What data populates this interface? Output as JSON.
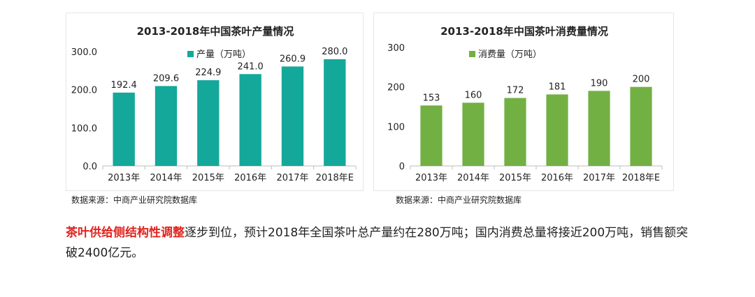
{
  "charts": {
    "production": {
      "title": "2013-2018年中国茶叶产量情况",
      "legend": "产量（万吨）",
      "source": "数据来源：中商产业研究院数据库",
      "color": "#14a89b"
    },
    "consumption": {
      "title": "2013-2018年中国茶叶消费量情况",
      "legend": "消费量（万吨）",
      "source": "数据来源：中商产业研究院数据库",
      "color": "#72b043"
    }
  },
  "chart_data": [
    {
      "type": "bar",
      "title": "2013-2018年中国茶叶产量情况",
      "categories": [
        "2013年",
        "2014年",
        "2015年",
        "2016年",
        "2017年",
        "2018年E"
      ],
      "series": [
        {
          "name": "产量（万吨）",
          "values": [
            192.4,
            209.6,
            224.9,
            241.0,
            260.9,
            280.0
          ]
        }
      ],
      "value_labels": [
        "192.4",
        "209.6",
        "224.9",
        "241.0",
        "260.9",
        "280.0"
      ],
      "ylim": [
        0,
        300
      ],
      "yticks": [
        "0.0",
        "100.0",
        "200.0",
        "300.0"
      ],
      "ytick_values": [
        0,
        100,
        200,
        300
      ],
      "xlabel": "",
      "ylabel": "",
      "grid": false,
      "legend_position": "top-left"
    },
    {
      "type": "bar",
      "title": "2013-2018年中国茶叶消费量情况",
      "categories": [
        "2013年",
        "2014年",
        "2015年",
        "2016年",
        "2017年",
        "2018年E"
      ],
      "series": [
        {
          "name": "消费量（万吨）",
          "values": [
            153,
            160,
            172,
            181,
            190,
            200
          ]
        }
      ],
      "value_labels": [
        "153",
        "160",
        "172",
        "181",
        "190",
        "200"
      ],
      "ylim": [
        0,
        300
      ],
      "yticks": [
        "0",
        "100",
        "200",
        "300"
      ],
      "ytick_values": [
        0,
        100,
        200,
        300
      ],
      "xlabel": "",
      "ylabel": "",
      "grid": false,
      "legend_position": "top-left"
    }
  ],
  "caption": {
    "highlight": "茶叶供给侧结构性调整",
    "text": "逐步到位，预计2018年全国茶叶总产量约在280万吨；国内消费总量将接近200万吨，销售额突破2400亿元。"
  }
}
